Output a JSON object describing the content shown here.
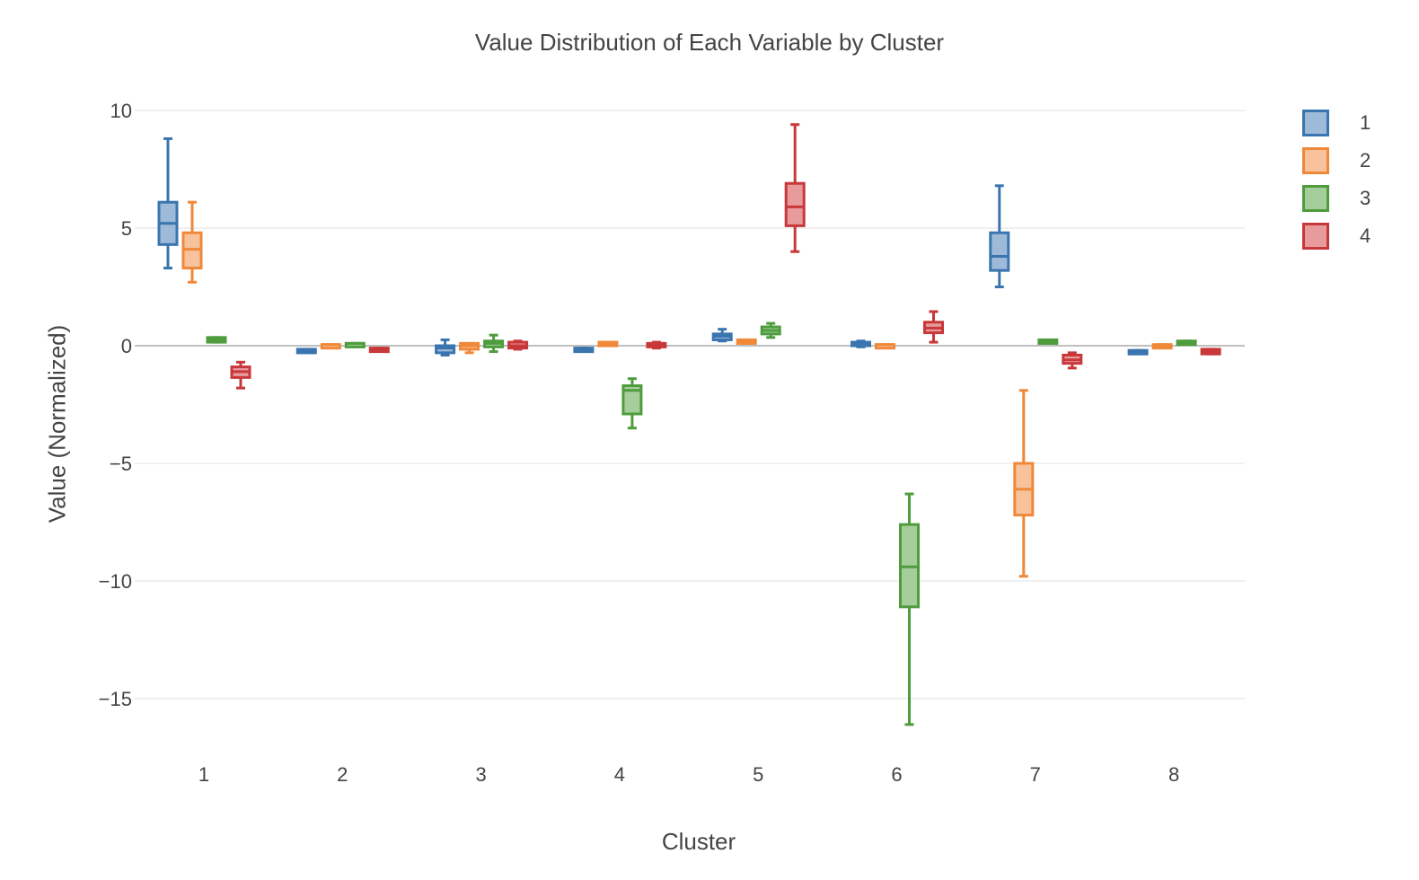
{
  "chart_data": {
    "type": "box",
    "title": "Value Distribution of Each Variable by Cluster",
    "xlabel": "Cluster",
    "ylabel": "Value (Normalized)",
    "categories": [
      "1",
      "2",
      "3",
      "4",
      "5",
      "6",
      "7",
      "8"
    ],
    "ylim": [
      -17.5,
      10.8
    ],
    "yticks": [
      10,
      5,
      0,
      -5,
      -10,
      -15
    ],
    "ytick_labels": [
      "10",
      "5",
      "0",
      "−5",
      "−10",
      "−15"
    ],
    "grid": true,
    "legend_position": "top-right",
    "series": [
      {
        "name": "1",
        "color": "#3a75b0",
        "fill": "#9dbad9",
        "boxes": [
          {
            "min": 3.3,
            "q1": 4.3,
            "median": 5.2,
            "q3": 6.1,
            "max": 8.8
          },
          {
            "min": -0.25,
            "q1": -0.25,
            "median": -0.2,
            "q3": -0.15,
            "max": -0.15
          },
          {
            "min": -0.4,
            "q1": -0.3,
            "median": -0.1,
            "q3": 0.0,
            "max": 0.25
          },
          {
            "min": -0.25,
            "q1": -0.2,
            "median": -0.15,
            "q3": -0.1,
            "max": -0.1
          },
          {
            "min": 0.2,
            "q1": 0.25,
            "median": 0.4,
            "q3": 0.5,
            "max": 0.7
          },
          {
            "min": -0.05,
            "q1": 0.0,
            "median": 0.1,
            "q3": 0.15,
            "max": 0.2
          },
          {
            "min": 2.5,
            "q1": 3.2,
            "median": 3.8,
            "q3": 4.8,
            "max": 6.8
          },
          {
            "min": -0.3,
            "q1": -0.3,
            "median": -0.25,
            "q3": -0.2,
            "max": -0.2
          }
        ]
      },
      {
        "name": "2",
        "color": "#f0883a",
        "fill": "#f8c39c",
        "boxes": [
          {
            "min": 2.7,
            "q1": 3.3,
            "median": 4.1,
            "q3": 4.8,
            "max": 6.1
          },
          {
            "min": 0.0,
            "q1": 0.0,
            "median": 0.05,
            "q3": 0.05,
            "max": 0.05
          },
          {
            "min": -0.3,
            "q1": -0.15,
            "median": 0.0,
            "q3": 0.1,
            "max": 0.1
          },
          {
            "min": 0.05,
            "q1": 0.05,
            "median": 0.1,
            "q3": 0.15,
            "max": 0.15
          },
          {
            "min": 0.1,
            "q1": 0.1,
            "median": 0.15,
            "q3": 0.25,
            "max": 0.25
          },
          {
            "min": 0.0,
            "q1": 0.0,
            "median": 0.05,
            "q3": 0.05,
            "max": 0.05
          },
          {
            "min": -9.8,
            "q1": -7.2,
            "median": -6.1,
            "q3": -5.0,
            "max": -1.9
          },
          {
            "min": -0.05,
            "q1": -0.05,
            "median": 0.0,
            "q3": 0.05,
            "max": 0.05
          }
        ]
      },
      {
        "name": "3",
        "color": "#4e9c3c",
        "fill": "#a6ce9c",
        "boxes": [
          {
            "min": 0.15,
            "q1": 0.15,
            "median": 0.25,
            "q3": 0.35,
            "max": 0.35
          },
          {
            "min": 0.05,
            "q1": 0.05,
            "median": 0.1,
            "q3": 0.1,
            "max": 0.1
          },
          {
            "min": -0.25,
            "q1": -0.05,
            "median": 0.1,
            "q3": 0.2,
            "max": 0.45
          },
          {
            "min": -3.5,
            "q1": -2.9,
            "median": -1.9,
            "q3": -1.7,
            "max": -1.4
          },
          {
            "min": 0.35,
            "q1": 0.5,
            "median": 0.65,
            "q3": 0.8,
            "max": 0.95
          },
          {
            "min": -16.1,
            "q1": -11.1,
            "median": -9.4,
            "q3": -7.6,
            "max": -6.3
          },
          {
            "min": 0.15,
            "q1": 0.15,
            "median": 0.2,
            "q3": 0.25,
            "max": 0.25
          },
          {
            "min": 0.1,
            "q1": 0.1,
            "median": 0.15,
            "q3": 0.2,
            "max": 0.2
          }
        ]
      },
      {
        "name": "4",
        "color": "#c8383a",
        "fill": "#e79b9c",
        "boxes": [
          {
            "min": -1.8,
            "q1": -1.35,
            "median": -1.1,
            "q3": -0.9,
            "max": -0.7
          },
          {
            "min": -0.2,
            "q1": -0.2,
            "median": -0.15,
            "q3": -0.1,
            "max": -0.1
          },
          {
            "min": -0.15,
            "q1": -0.1,
            "median": 0.0,
            "q3": 0.15,
            "max": 0.2
          },
          {
            "min": -0.1,
            "q1": -0.05,
            "median": 0.0,
            "q3": 0.1,
            "max": 0.15
          },
          {
            "min": 4.0,
            "q1": 5.1,
            "median": 5.9,
            "q3": 6.9,
            "max": 9.4
          },
          {
            "min": 0.15,
            "q1": 0.55,
            "median": 0.75,
            "q3": 1.0,
            "max": 1.45
          },
          {
            "min": -0.95,
            "q1": -0.75,
            "median": -0.6,
            "q3": -0.4,
            "max": -0.3
          },
          {
            "min": -0.35,
            "q1": -0.35,
            "median": -0.25,
            "q3": -0.15,
            "max": -0.15
          }
        ]
      }
    ]
  }
}
